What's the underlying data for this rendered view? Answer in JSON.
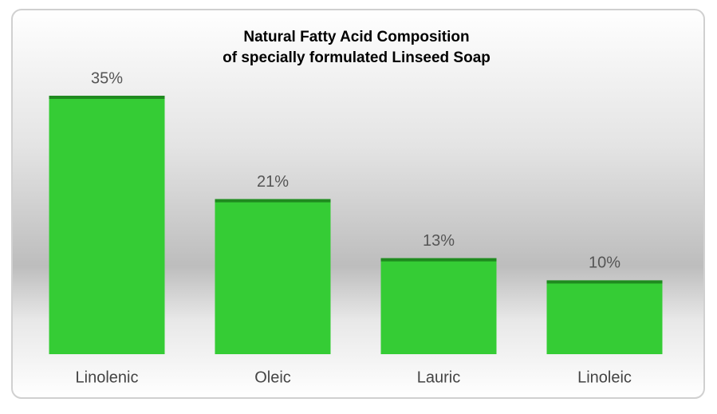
{
  "chart_data": {
    "type": "bar",
    "title": [
      "Natural Fatty Acid Composition",
      "of specially formulated Linseed Soap"
    ],
    "categories": [
      "Linolenic",
      "Oleic",
      "Lauric",
      "Linoleic"
    ],
    "values": [
      35,
      21,
      13,
      10
    ],
    "value_labels": [
      "35%",
      "21%",
      "13%",
      "10%"
    ],
    "color": "#35cc35"
  }
}
